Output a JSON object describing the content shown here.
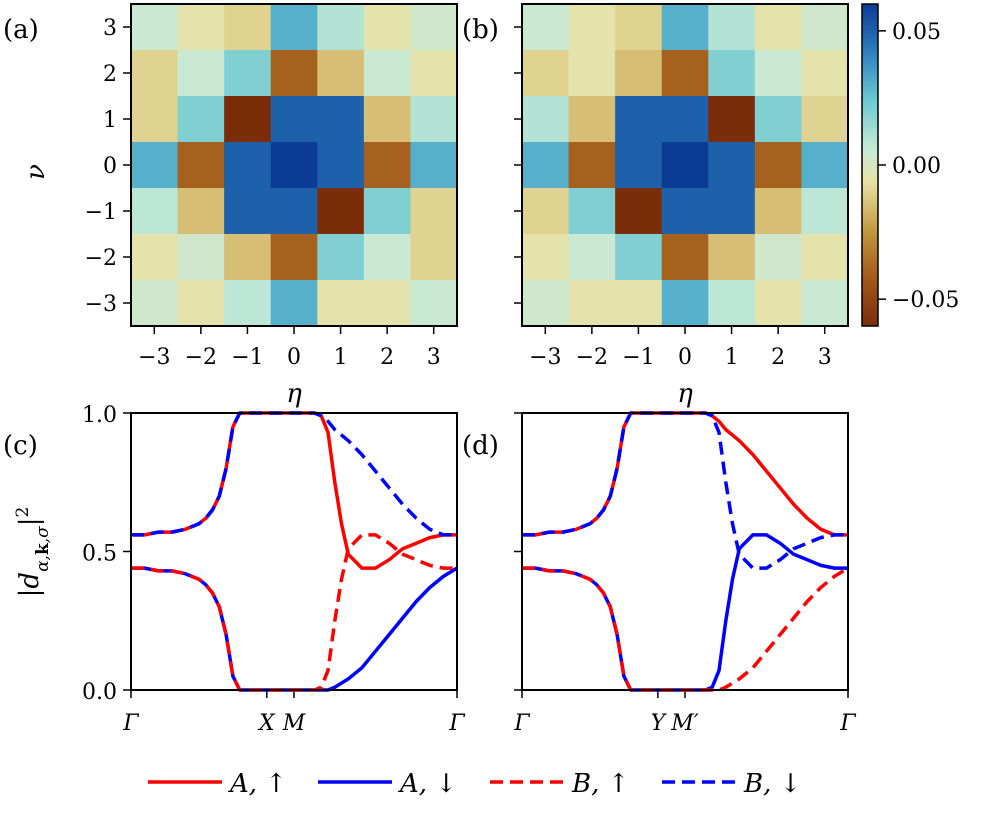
{
  "chart_data": [
    {
      "id": "a",
      "type": "heatmap",
      "panel_label": "(a)",
      "xlabel": "η",
      "ylabel": "ν",
      "x_ticks": [
        -3,
        -2,
        -1,
        0,
        1,
        2,
        3
      ],
      "y_ticks": [
        -3,
        -2,
        -1,
        0,
        1,
        2,
        3
      ],
      "x_tick_labels": [
        "−3",
        "−2",
        "−1",
        "0",
        "1",
        "2",
        "3"
      ],
      "y_tick_labels": [
        "−3",
        "−2",
        "−1",
        "0",
        "1",
        "2",
        "3"
      ],
      "rows_nu_top_to_bottom": [
        3,
        2,
        1,
        0,
        -1,
        -2,
        -3
      ],
      "values": [
        [
          0.005,
          -0.005,
          -0.01,
          0.03,
          0.01,
          -0.005,
          0.003
        ],
        [
          -0.01,
          0.005,
          0.02,
          -0.04,
          -0.015,
          0.005,
          -0.005
        ],
        [
          -0.01,
          0.02,
          -0.06,
          0.05,
          0.05,
          -0.015,
          0.01
        ],
        [
          0.03,
          -0.04,
          0.05,
          0.06,
          0.05,
          -0.04,
          0.03
        ],
        [
          0.008,
          -0.015,
          0.05,
          0.05,
          -0.06,
          0.02,
          -0.01
        ],
        [
          -0.005,
          0.003,
          -0.015,
          -0.04,
          0.02,
          0.005,
          -0.01
        ],
        [
          0.003,
          -0.005,
          0.008,
          0.03,
          -0.005,
          -0.005,
          0.005
        ]
      ]
    },
    {
      "id": "b",
      "type": "heatmap",
      "panel_label": "(b)",
      "xlabel": "η",
      "x_ticks": [
        -3,
        -2,
        -1,
        0,
        1,
        2,
        3
      ],
      "x_tick_labels": [
        "−3",
        "−2",
        "−1",
        "0",
        "1",
        "2",
        "3"
      ],
      "rows_nu_top_to_bottom": [
        3,
        2,
        1,
        0,
        -1,
        -2,
        -3
      ],
      "values": [
        [
          0.005,
          -0.005,
          -0.01,
          0.03,
          0.01,
          -0.005,
          0.003
        ],
        [
          -0.01,
          -0.005,
          -0.015,
          -0.04,
          0.02,
          0.005,
          -0.005
        ],
        [
          0.01,
          -0.015,
          0.05,
          0.05,
          -0.06,
          0.02,
          -0.01
        ],
        [
          0.03,
          -0.04,
          0.05,
          0.06,
          0.05,
          -0.04,
          0.03
        ],
        [
          -0.01,
          0.02,
          -0.06,
          0.05,
          0.05,
          -0.015,
          0.008
        ],
        [
          -0.005,
          0.005,
          0.02,
          -0.04,
          -0.015,
          0.003,
          -0.005
        ],
        [
          0.003,
          -0.005,
          -0.005,
          0.03,
          0.008,
          -0.005,
          0.005
        ]
      ]
    },
    {
      "id": "colorbar",
      "type": "colorbar",
      "range": [
        -0.06,
        0.06
      ],
      "ticks": [
        -0.05,
        0.0,
        0.05
      ],
      "tick_labels": [
        "−0.05",
        "0.00",
        "0.05"
      ]
    },
    {
      "id": "c",
      "type": "line",
      "panel_label": "(c)",
      "ylabel": "|d_{α,k,σ}|²",
      "ylim": [
        0,
        1
      ],
      "y_ticks": [
        0,
        0.5,
        1.0
      ],
      "y_tick_labels": [
        "0.0",
        "0.5",
        "1.0"
      ],
      "x_tick_labels": [
        "Γ",
        "X",
        "M",
        "Γ"
      ],
      "x_tick_positions": [
        0,
        1,
        1.2,
        2.4
      ],
      "series": [
        {
          "name": "A,↑",
          "color": "#ff0000",
          "dash": "solid",
          "x": [
            0,
            0.1,
            0.2,
            0.3,
            0.4,
            0.5,
            0.55,
            0.6,
            0.65,
            0.7,
            0.75,
            0.8,
            0.85,
            0.9,
            0.95,
            1.0,
            1.1,
            1.2,
            1.25,
            1.3,
            1.35,
            1.4,
            1.45,
            1.5,
            1.55,
            1.6,
            1.7,
            1.8,
            1.9,
            2.0,
            2.1,
            2.2,
            2.3,
            2.4
          ],
          "y": [
            0.56,
            0.56,
            0.57,
            0.57,
            0.58,
            0.6,
            0.62,
            0.65,
            0.7,
            0.8,
            0.95,
            1.0,
            1.0,
            1.0,
            1.0,
            1.0,
            1.0,
            1.0,
            1.0,
            1.0,
            1.0,
            0.99,
            0.93,
            0.75,
            0.6,
            0.49,
            0.44,
            0.44,
            0.47,
            0.51,
            0.53,
            0.55,
            0.56,
            0.56
          ]
        },
        {
          "name": "A,↓",
          "color": "#0000ff",
          "dash": "solid",
          "x": [
            0,
            0.1,
            0.2,
            0.3,
            0.4,
            0.5,
            0.55,
            0.6,
            0.65,
            0.7,
            0.75,
            0.8,
            0.85,
            0.9,
            0.95,
            1.0,
            1.1,
            1.2,
            1.25,
            1.3,
            1.35,
            1.4,
            1.45,
            1.5,
            1.6,
            1.7,
            1.8,
            1.9,
            2.0,
            2.1,
            2.2,
            2.3,
            2.4
          ],
          "y": [
            0.44,
            0.44,
            0.43,
            0.43,
            0.42,
            0.4,
            0.38,
            0.35,
            0.3,
            0.2,
            0.05,
            0.0,
            0.0,
            0.0,
            0.0,
            0.0,
            0.0,
            0.0,
            0.0,
            0.0,
            0.0,
            0.0,
            0.0,
            0.01,
            0.04,
            0.08,
            0.14,
            0.2,
            0.26,
            0.32,
            0.37,
            0.41,
            0.44
          ]
        },
        {
          "name": "B,↑",
          "color": "#ff0000",
          "dash": "dashed",
          "x": [
            0,
            0.1,
            0.2,
            0.3,
            0.4,
            0.5,
            0.55,
            0.6,
            0.65,
            0.7,
            0.75,
            0.8,
            0.85,
            0.9,
            0.95,
            1.0,
            1.1,
            1.2,
            1.25,
            1.3,
            1.35,
            1.4,
            1.45,
            1.5,
            1.55,
            1.6,
            1.7,
            1.8,
            1.9,
            2.0,
            2.1,
            2.2,
            2.3,
            2.4
          ],
          "y": [
            0.44,
            0.44,
            0.43,
            0.43,
            0.42,
            0.4,
            0.38,
            0.35,
            0.3,
            0.2,
            0.05,
            0.0,
            0.0,
            0.0,
            0.0,
            0.0,
            0.0,
            0.0,
            0.0,
            0.0,
            0.0,
            0.01,
            0.07,
            0.25,
            0.4,
            0.51,
            0.56,
            0.56,
            0.53,
            0.49,
            0.47,
            0.45,
            0.44,
            0.44
          ]
        },
        {
          "name": "B,↓",
          "color": "#0000ff",
          "dash": "dashed",
          "x": [
            0,
            0.1,
            0.2,
            0.3,
            0.4,
            0.5,
            0.55,
            0.6,
            0.65,
            0.7,
            0.75,
            0.8,
            0.85,
            0.9,
            0.95,
            1.0,
            1.1,
            1.2,
            1.25,
            1.3,
            1.35,
            1.4,
            1.45,
            1.5,
            1.6,
            1.7,
            1.8,
            1.9,
            2.0,
            2.1,
            2.2,
            2.3,
            2.4
          ],
          "y": [
            0.56,
            0.56,
            0.57,
            0.57,
            0.58,
            0.6,
            0.62,
            0.65,
            0.7,
            0.8,
            0.95,
            1.0,
            1.0,
            1.0,
            1.0,
            1.0,
            1.0,
            1.0,
            1.0,
            1.0,
            1.0,
            0.99,
            0.97,
            0.94,
            0.9,
            0.85,
            0.79,
            0.73,
            0.67,
            0.62,
            0.58,
            0.56,
            0.56
          ]
        }
      ]
    },
    {
      "id": "d",
      "type": "line",
      "panel_label": "(d)",
      "ylim": [
        0,
        1
      ],
      "x_tick_labels": [
        "Γ",
        "Y",
        "M′",
        "Γ"
      ],
      "x_tick_positions": [
        0,
        1,
        1.2,
        2.4
      ],
      "series": [
        {
          "name": "A,↑",
          "color": "#ff0000",
          "dash": "solid",
          "x": [
            0,
            0.1,
            0.2,
            0.3,
            0.4,
            0.5,
            0.55,
            0.6,
            0.65,
            0.7,
            0.75,
            0.8,
            0.85,
            0.9,
            0.95,
            1.0,
            1.1,
            1.2,
            1.25,
            1.3,
            1.35,
            1.4,
            1.45,
            1.5,
            1.6,
            1.7,
            1.8,
            1.9,
            2.0,
            2.1,
            2.2,
            2.3,
            2.4
          ],
          "y": [
            0.56,
            0.56,
            0.57,
            0.57,
            0.58,
            0.6,
            0.62,
            0.65,
            0.7,
            0.8,
            0.95,
            1.0,
            1.0,
            1.0,
            1.0,
            1.0,
            1.0,
            1.0,
            1.0,
            1.0,
            1.0,
            0.99,
            0.97,
            0.94,
            0.9,
            0.85,
            0.79,
            0.73,
            0.67,
            0.62,
            0.58,
            0.56,
            0.56
          ]
        },
        {
          "name": "A,↓",
          "color": "#0000ff",
          "dash": "solid",
          "x": [
            0,
            0.1,
            0.2,
            0.3,
            0.4,
            0.5,
            0.55,
            0.6,
            0.65,
            0.7,
            0.75,
            0.8,
            0.85,
            0.9,
            0.95,
            1.0,
            1.1,
            1.2,
            1.25,
            1.3,
            1.35,
            1.4,
            1.45,
            1.5,
            1.55,
            1.6,
            1.7,
            1.8,
            1.9,
            2.0,
            2.1,
            2.2,
            2.3,
            2.4
          ],
          "y": [
            0.44,
            0.44,
            0.43,
            0.43,
            0.42,
            0.4,
            0.38,
            0.35,
            0.3,
            0.2,
            0.05,
            0.0,
            0.0,
            0.0,
            0.0,
            0.0,
            0.0,
            0.0,
            0.0,
            0.0,
            0.0,
            0.01,
            0.07,
            0.25,
            0.4,
            0.51,
            0.56,
            0.56,
            0.53,
            0.49,
            0.47,
            0.45,
            0.44,
            0.44
          ]
        },
        {
          "name": "B,↑",
          "color": "#ff0000",
          "dash": "dashed",
          "x": [
            0,
            0.1,
            0.2,
            0.3,
            0.4,
            0.5,
            0.55,
            0.6,
            0.65,
            0.7,
            0.75,
            0.8,
            0.85,
            0.9,
            0.95,
            1.0,
            1.1,
            1.2,
            1.25,
            1.3,
            1.35,
            1.4,
            1.45,
            1.5,
            1.6,
            1.7,
            1.8,
            1.9,
            2.0,
            2.1,
            2.2,
            2.3,
            2.4
          ],
          "y": [
            0.44,
            0.44,
            0.43,
            0.43,
            0.42,
            0.4,
            0.38,
            0.35,
            0.3,
            0.2,
            0.05,
            0.0,
            0.0,
            0.0,
            0.0,
            0.0,
            0.0,
            0.0,
            0.0,
            0.0,
            0.0,
            0.0,
            0.0,
            0.01,
            0.04,
            0.08,
            0.14,
            0.2,
            0.26,
            0.32,
            0.37,
            0.41,
            0.44
          ]
        },
        {
          "name": "B,↓",
          "color": "#0000ff",
          "dash": "dashed",
          "x": [
            0,
            0.1,
            0.2,
            0.3,
            0.4,
            0.5,
            0.55,
            0.6,
            0.65,
            0.7,
            0.75,
            0.8,
            0.85,
            0.9,
            0.95,
            1.0,
            1.1,
            1.2,
            1.25,
            1.3,
            1.35,
            1.4,
            1.45,
            1.5,
            1.55,
            1.6,
            1.7,
            1.8,
            1.9,
            2.0,
            2.1,
            2.2,
            2.3,
            2.4
          ],
          "y": [
            0.56,
            0.56,
            0.57,
            0.57,
            0.58,
            0.6,
            0.62,
            0.65,
            0.7,
            0.8,
            0.95,
            1.0,
            1.0,
            1.0,
            1.0,
            1.0,
            1.0,
            1.0,
            1.0,
            1.0,
            1.0,
            0.99,
            0.93,
            0.75,
            0.6,
            0.49,
            0.44,
            0.44,
            0.47,
            0.51,
            0.53,
            0.55,
            0.56,
            0.56
          ]
        }
      ]
    }
  ],
  "legend": {
    "placement": "bottom-center",
    "entries": [
      {
        "label": "A, ↑",
        "color": "#ff0000",
        "dash": "solid"
      },
      {
        "label": "A, ↓",
        "color": "#0000ff",
        "dash": "solid"
      },
      {
        "label": "B, ↑",
        "color": "#ff0000",
        "dash": "dashed"
      },
      {
        "label": "B, ↓",
        "color": "#0000ff",
        "dash": "dashed"
      }
    ]
  }
}
